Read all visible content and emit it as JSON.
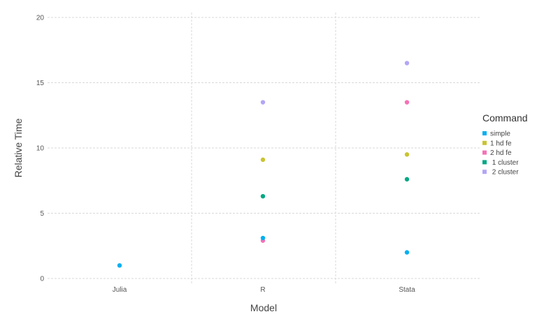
{
  "chart_data": {
    "type": "scatter",
    "xlabel": "Model",
    "ylabel": "Relative Time",
    "categories": [
      "Julia",
      "R",
      "Stata"
    ],
    "ylim": [
      0,
      20
    ],
    "yticks": [
      0,
      5,
      10,
      15,
      20
    ],
    "grid": true,
    "legend": {
      "title": "Command",
      "placement": "right"
    },
    "series": [
      {
        "name": "simple",
        "color": "#00b0f0",
        "points": [
          {
            "x": "Julia",
            "y": 1.0
          },
          {
            "x": "R",
            "y": 3.1
          },
          {
            "x": "Stata",
            "y": 2.0
          }
        ]
      },
      {
        "name": "1 hd fe",
        "color": "#c9c430",
        "points": [
          {
            "x": "R",
            "y": 9.1
          },
          {
            "x": "Stata",
            "y": 9.5
          }
        ]
      },
      {
        "name": "2 hd fe",
        "color": "#f472b6",
        "points": [
          {
            "x": "R",
            "y": 2.9
          },
          {
            "x": "Stata",
            "y": 13.5
          }
        ]
      },
      {
        "name": " 1 cluster",
        "color": "#00a884",
        "points": [
          {
            "x": "R",
            "y": 6.3
          },
          {
            "x": "Stata",
            "y": 7.6
          }
        ]
      },
      {
        "name": " 2 cluster",
        "color": "#b3a6f5",
        "points": [
          {
            "x": "R",
            "y": 13.5
          },
          {
            "x": "Stata",
            "y": 16.5
          }
        ]
      }
    ]
  }
}
